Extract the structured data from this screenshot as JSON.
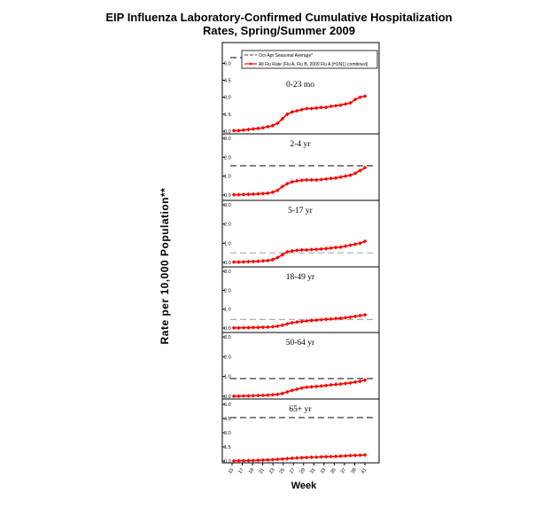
{
  "title_line1": "EIP Influenza Laboratory-Confirmed Cumulative Hospitalization",
  "title_line2": "Rates, Spring/Summer 2009",
  "ylabel": "Rate per 10,000 Population**",
  "xlabel": "Week",
  "legend": {
    "seasonal_label": "Oct-Apr Seasonal Average*",
    "flu_label": "All Flu Rate (Flu A, Flu B, 2009 Flu A (H1N1) combined)"
  },
  "colors": {
    "flu_line": "#ff0000",
    "seasonal_line": "#666666",
    "seasonal_line_light": "#aaaaaa"
  },
  "chart_data": [
    {
      "type": "line",
      "panel": "0-23 mo",
      "ylim": [
        0,
        7.2
      ],
      "yticks": [
        "0.0",
        "1.5",
        "3.0",
        "4.5",
        "6.0"
      ],
      "ytick_values": [
        0,
        1.5,
        3.0,
        4.5,
        6.0
      ],
      "seasonal_average": 6.5,
      "series": [
        {
          "name": "All Flu Rate (Flu A, Flu B, 2009 Flu A (H1N1) combined)",
          "values": [
            0.05,
            0.05,
            0.1,
            0.15,
            0.2,
            0.25,
            0.3,
            0.4,
            0.5,
            0.7,
            1.1,
            1.5,
            1.7,
            1.8,
            1.9,
            2.0,
            2.0,
            2.05,
            2.1,
            2.1,
            2.2,
            2.25,
            2.3,
            2.4,
            2.5,
            2.8,
            3.0,
            3.1
          ]
        }
      ]
    },
    {
      "type": "line",
      "panel": "2-4 yr",
      "ylim": [
        0,
        3.0
      ],
      "yticks": [
        "0.0",
        "1.0",
        "2.0",
        "3.0"
      ],
      "ytick_values": [
        0,
        1.0,
        2.0,
        3.0
      ],
      "seasonal_average": 1.55,
      "series": [
        {
          "name": "All Flu Rate (Flu A, Flu B, 2009 Flu A (H1N1) combined)",
          "values": [
            0.02,
            0.02,
            0.03,
            0.04,
            0.05,
            0.06,
            0.08,
            0.1,
            0.15,
            0.25,
            0.45,
            0.6,
            0.7,
            0.75,
            0.78,
            0.8,
            0.8,
            0.8,
            0.82,
            0.85,
            0.88,
            0.9,
            0.95,
            1.0,
            1.05,
            1.15,
            1.3,
            1.45
          ]
        }
      ]
    },
    {
      "type": "line",
      "panel": "5-17 yr",
      "ylim": [
        0,
        3.0
      ],
      "yticks": [
        "0.0",
        "1.0",
        "2.0",
        "3.0"
      ],
      "ytick_values": [
        0,
        1.0,
        2.0,
        3.0
      ],
      "seasonal_average": 0.5,
      "series": [
        {
          "name": "All Flu Rate (Flu A, Flu B, 2009 Flu A (H1N1) combined)",
          "values": [
            0.02,
            0.02,
            0.03,
            0.04,
            0.05,
            0.06,
            0.08,
            0.1,
            0.15,
            0.25,
            0.4,
            0.55,
            0.6,
            0.63,
            0.65,
            0.65,
            0.67,
            0.68,
            0.7,
            0.72,
            0.75,
            0.78,
            0.8,
            0.85,
            0.9,
            0.95,
            1.0,
            1.1
          ]
        }
      ]
    },
    {
      "type": "line",
      "panel": "18-49 yr",
      "ylim": [
        0,
        3.0
      ],
      "yticks": [
        "0.0",
        "1.0",
        "2.0",
        "3.0"
      ],
      "ytick_values": [
        0,
        1.0,
        2.0,
        3.0
      ],
      "seasonal_average": 0.45,
      "series": [
        {
          "name": "All Flu Rate (Flu A, Flu B, 2009 Flu A (H1N1) combined)",
          "values": [
            0.01,
            0.01,
            0.02,
            0.02,
            0.03,
            0.03,
            0.04,
            0.05,
            0.07,
            0.1,
            0.15,
            0.22,
            0.28,
            0.32,
            0.35,
            0.38,
            0.4,
            0.42,
            0.44,
            0.46,
            0.48,
            0.5,
            0.52,
            0.55,
            0.58,
            0.62,
            0.66,
            0.7
          ]
        }
      ]
    },
    {
      "type": "line",
      "panel": "50-64 yr",
      "ylim": [
        0,
        3.0
      ],
      "yticks": [
        "0.0",
        "1.0",
        "2.0",
        "3.0"
      ],
      "ytick_values": [
        0,
        1.0,
        2.0,
        3.0
      ],
      "seasonal_average": 0.9,
      "series": [
        {
          "name": "All Flu Rate (Flu A, Flu B, 2009 Flu A (H1N1) combined)",
          "values": [
            0.01,
            0.01,
            0.02,
            0.02,
            0.03,
            0.04,
            0.05,
            0.06,
            0.08,
            0.1,
            0.15,
            0.22,
            0.3,
            0.36,
            0.42,
            0.46,
            0.48,
            0.5,
            0.52,
            0.55,
            0.58,
            0.6,
            0.62,
            0.65,
            0.68,
            0.72,
            0.76,
            0.82
          ]
        }
      ]
    },
    {
      "type": "line",
      "panel": "65+ yr",
      "ylim": [
        0,
        6.0
      ],
      "yticks": [
        "0.0",
        "1.5",
        "3.0",
        "4.5",
        "6.0"
      ],
      "ytick_values": [
        0,
        1.5,
        3.0,
        4.5,
        6.0
      ],
      "seasonal_average": 4.6,
      "series": [
        {
          "name": "All Flu Rate (Flu A, Flu B, 2009 Flu A (H1N1) combined)",
          "values": [
            0.02,
            0.03,
            0.04,
            0.05,
            0.06,
            0.08,
            0.1,
            0.12,
            0.15,
            0.18,
            0.22,
            0.26,
            0.3,
            0.33,
            0.36,
            0.38,
            0.4,
            0.42,
            0.44,
            0.46,
            0.48,
            0.5,
            0.52,
            0.55,
            0.58,
            0.6,
            0.62,
            0.65
          ]
        }
      ]
    }
  ],
  "x_tick_labels": [
    "15",
    "17",
    "19",
    "21",
    "23",
    "25",
    "27",
    "29",
    "31",
    "33",
    "35",
    "37",
    "39",
    "41"
  ]
}
